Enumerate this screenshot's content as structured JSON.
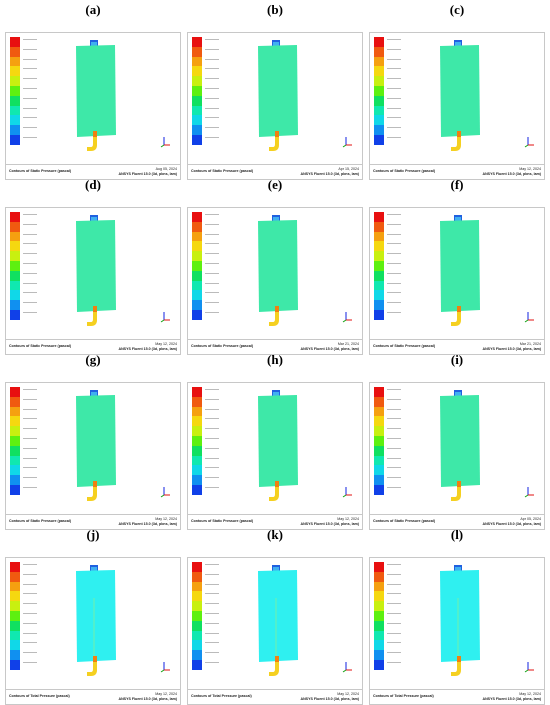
{
  "panels": [
    {
      "label": "(a)",
      "footer_title": "Contours of Static Pressure (pascal)",
      "footer_date": "Aug 05, 2024",
      "footer_software": "ANSYS Fluent 15.0 (3d, pbns, lam)",
      "body_color": "#3ee8a8",
      "variant": "static"
    },
    {
      "label": "(b)",
      "footer_title": "Contours of Static Pressure (pascal)",
      "footer_date": "Apr 15, 2024",
      "footer_software": "ANSYS Fluent 15.0 (3d, pbns, lam)",
      "body_color": "#3ee8a8",
      "variant": "static"
    },
    {
      "label": "(c)",
      "footer_title": "Contours of Static Pressure (pascal)",
      "footer_date": "May 12, 2024",
      "footer_software": "ANSYS Fluent 15.0 (3d, pbns, lam)",
      "body_color": "#3ee8a8",
      "variant": "static"
    },
    {
      "label": "(d)",
      "footer_title": "Contours of Static Pressure (pascal)",
      "footer_date": "May 12, 2024",
      "footer_software": "ANSYS Fluent 15.0 (3d, pbns, lam)",
      "body_color": "#3ee8a8",
      "variant": "static"
    },
    {
      "label": "(e)",
      "footer_title": "Contours of Static Pressure (pascal)",
      "footer_date": "Mar 21, 2024",
      "footer_software": "ANSYS Fluent 15.0 (3d, pbns, lam)",
      "body_color": "#3ee8a8",
      "variant": "static"
    },
    {
      "label": "(f)",
      "footer_title": "Contours of Static Pressure (pascal)",
      "footer_date": "Mar 21, 2024",
      "footer_software": "ANSYS Fluent 15.0 (3d, pbns, lam)",
      "body_color": "#3ee8a8",
      "variant": "static"
    },
    {
      "label": "(g)",
      "footer_title": "Contours of Static Pressure (pascal)",
      "footer_date": "May 12, 2024",
      "footer_software": "ANSYS Fluent 15.0 (3d, pbns, lam)",
      "body_color": "#3ee8a8",
      "variant": "static"
    },
    {
      "label": "(h)",
      "footer_title": "Contours of Static Pressure (pascal)",
      "footer_date": "May 12, 2024",
      "footer_software": "ANSYS Fluent 15.0 (3d, pbns, lam)",
      "body_color": "#3ee8a8",
      "variant": "static"
    },
    {
      "label": "(i)",
      "footer_title": "Contours of Static Pressure (pascal)",
      "footer_date": "Apr 05, 2024",
      "footer_software": "ANSYS Fluent 15.0 (3d, pbns, lam)",
      "body_color": "#3ee8a8",
      "variant": "static"
    },
    {
      "label": "(j)",
      "footer_title": "Contours of Total Pressure (pascal)",
      "footer_date": "May 12, 2024",
      "footer_software": "ANSYS Fluent 15.0 (3d, pbns, lam)",
      "body_color": "#2ff0f0",
      "variant": "total"
    },
    {
      "label": "(k)",
      "footer_title": "Contours of Total Pressure (pascal)",
      "footer_date": "May 12, 2024",
      "footer_software": "ANSYS Fluent 15.0 (3d, pbns, lam)",
      "body_color": "#2ff0f0",
      "variant": "total"
    },
    {
      "label": "(l)",
      "footer_title": "Contours of Total Pressure (pascal)",
      "footer_date": "May 12, 2024",
      "footer_software": "ANSYS Fluent 15.0 (3d, pbns, lam)",
      "body_color": "#2ff0f0",
      "variant": "total"
    }
  ],
  "legend_colors": [
    "#e81010",
    "#f05a10",
    "#f5a010",
    "#f5d810",
    "#c8f010",
    "#5ef010",
    "#10e060",
    "#10e8b0",
    "#10d8e8",
    "#1090f0",
    "#1040e8"
  ],
  "accent_colors": {
    "jet_yellow": "#f5d020",
    "jet_orange": "#f08010",
    "inlet_blue": "#2060e0",
    "axis_red": "#e01010",
    "axis_green": "#10a010",
    "axis_blue": "#1020e0"
  }
}
